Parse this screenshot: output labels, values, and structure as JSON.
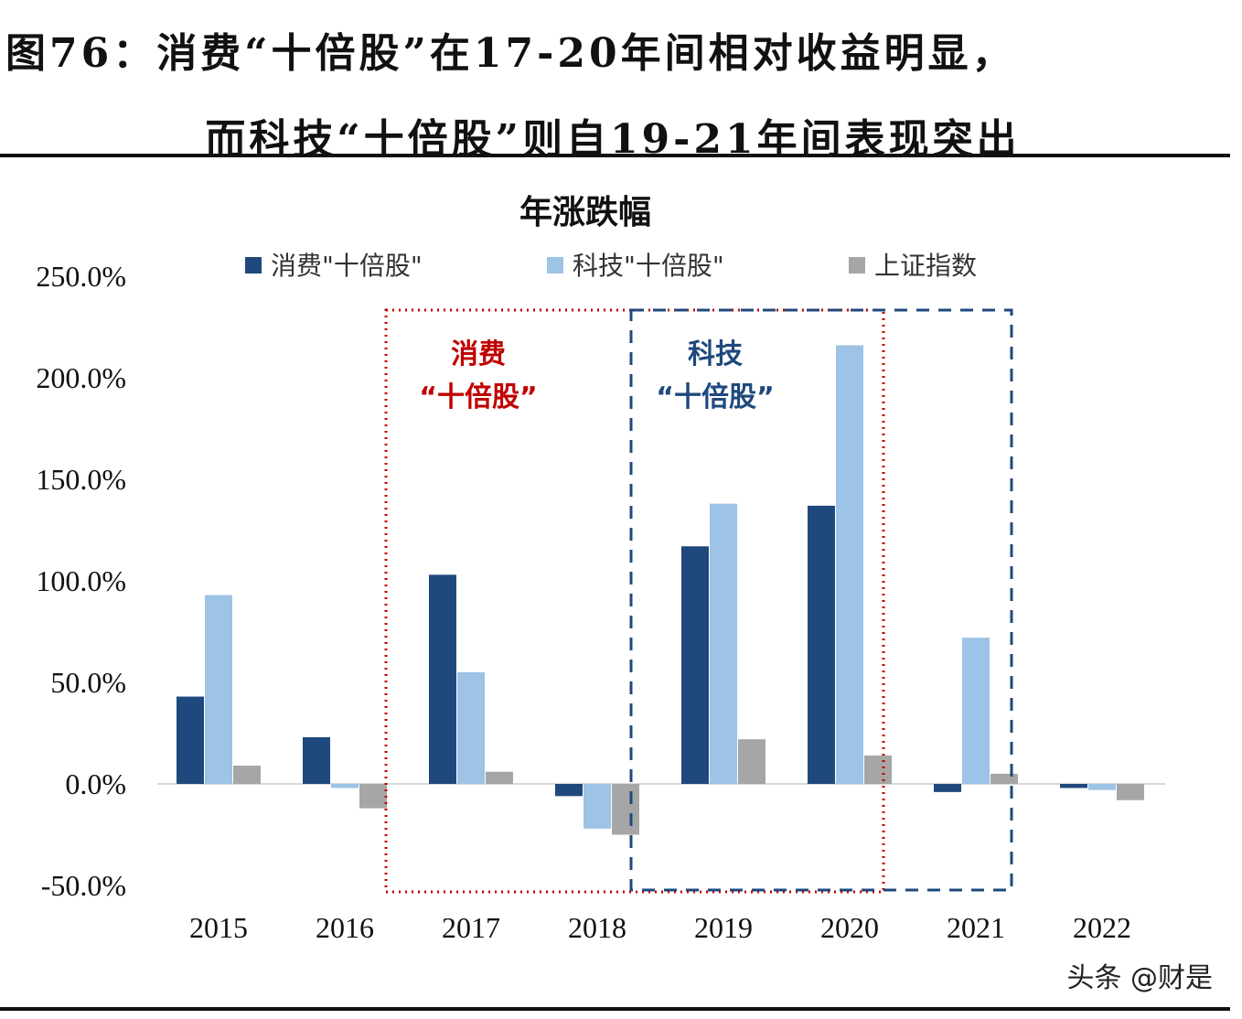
{
  "header": {
    "title_line1": "图76：消费“十倍股”在17-20年间相对收益明显，",
    "title_line2": "而科技“十倍股”则自19-21年间表现突出"
  },
  "watermark": "头条 @财是",
  "chart_data": {
    "type": "bar",
    "title": "年涨跌幅",
    "categories": [
      "2015",
      "2016",
      "2017",
      "2018",
      "2019",
      "2020",
      "2021",
      "2022"
    ],
    "series": [
      {
        "name": "消费\"十倍股\"",
        "color": "#1f497d",
        "values": [
          43,
          23,
          103,
          -6,
          117,
          137,
          -4,
          -2
        ]
      },
      {
        "name": "科技\"十倍股\"",
        "color": "#9dc3e6",
        "values": [
          93,
          -2,
          55,
          -22,
          138,
          216,
          72,
          -3
        ]
      },
      {
        "name": "上证指数",
        "color": "#a6a6a6",
        "values": [
          9,
          -12,
          6,
          -25,
          22,
          14,
          5,
          -8
        ]
      }
    ],
    "ylim": [
      -50,
      250
    ],
    "yticks": [
      "-50.0%",
      "0.0%",
      "50.0%",
      "100.0%",
      "150.0%",
      "200.0%",
      "250.0%"
    ],
    "ytick_values": [
      -50,
      0,
      50,
      100,
      150,
      200,
      250
    ],
    "legend_position": "top",
    "grid": false,
    "annotations": [
      {
        "line1": "消费",
        "line2": "“十倍股”",
        "color": "#c00000",
        "style": "dotted",
        "range": [
          "2017",
          "2020"
        ]
      },
      {
        "line1": "科技",
        "line2": "“十倍股”",
        "color": "#1f497d",
        "style": "dashed",
        "range": [
          "2019",
          "2021"
        ]
      }
    ]
  }
}
